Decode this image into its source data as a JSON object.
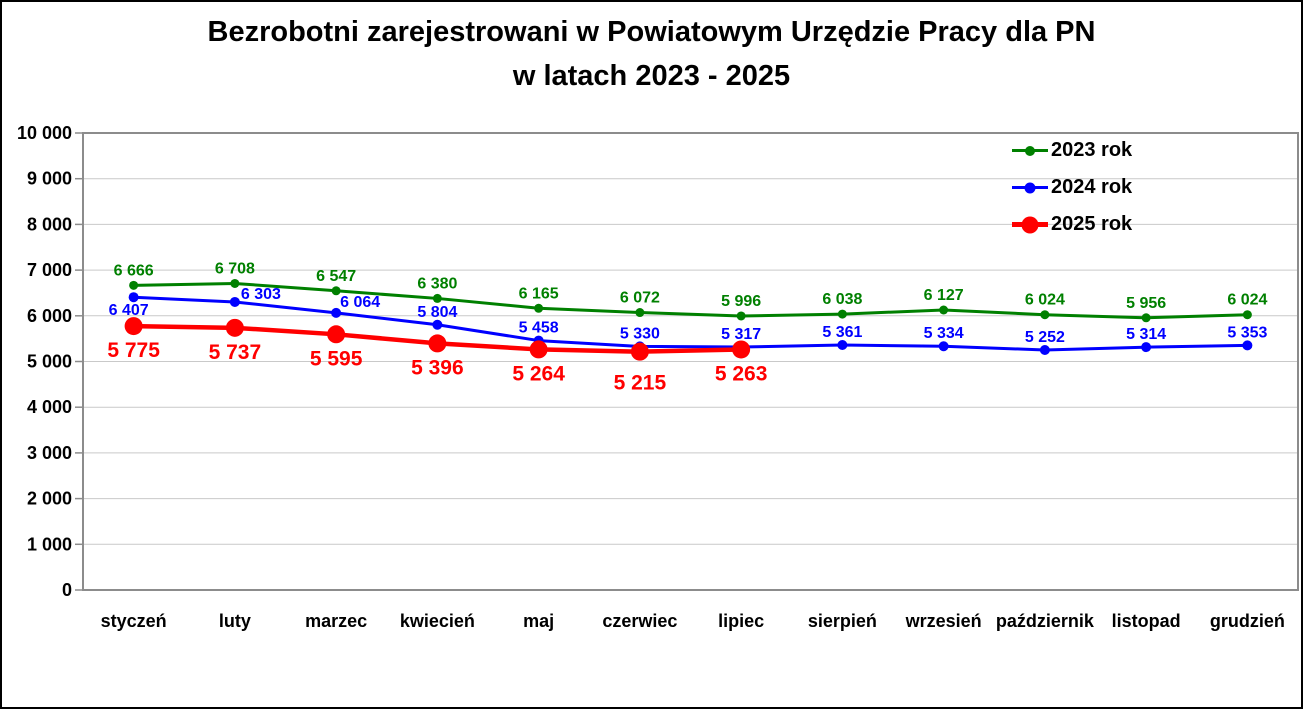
{
  "chart_data": {
    "type": "line",
    "title": "Bezrobotni zarejestrowani w Powiatowym Urzędzie Pracy dla PN",
    "subtitle": "w latach 2023 - 2025",
    "categories": [
      "styczeń",
      "luty",
      "marzec",
      "kwiecień",
      "maj",
      "czerwiec",
      "lipiec",
      "sierpień",
      "wrzesień",
      "październik",
      "listopad",
      "grudzień"
    ],
    "series": [
      {
        "name": "2023 rok",
        "color": "#008000",
        "values": [
          6666,
          6708,
          6547,
          6380,
          6165,
          6072,
          5996,
          6038,
          6127,
          6024,
          5956,
          6024
        ]
      },
      {
        "name": "2024 rok",
        "color": "#0000FF",
        "values": [
          6407,
          6303,
          6064,
          5804,
          5458,
          5330,
          5317,
          5361,
          5334,
          5252,
          5314,
          5353
        ]
      },
      {
        "name": "2025 rok",
        "color": "#FF0000",
        "values": [
          5775,
          5737,
          5595,
          5396,
          5264,
          5215,
          5263
        ]
      }
    ],
    "ylim": [
      0,
      10000
    ],
    "ytick_step": 1000,
    "ytick_labels": [
      "0",
      "1 000",
      "2 000",
      "3 000",
      "4 000",
      "5 000",
      "6 000",
      "7 000",
      "8 000",
      "9 000",
      "10 000"
    ],
    "grid": true,
    "data_labels": true,
    "legend_position": "top-right",
    "axis_color": "#8C8C8C",
    "gridline_color": "#C9C9C9",
    "text_color": "#000000"
  }
}
